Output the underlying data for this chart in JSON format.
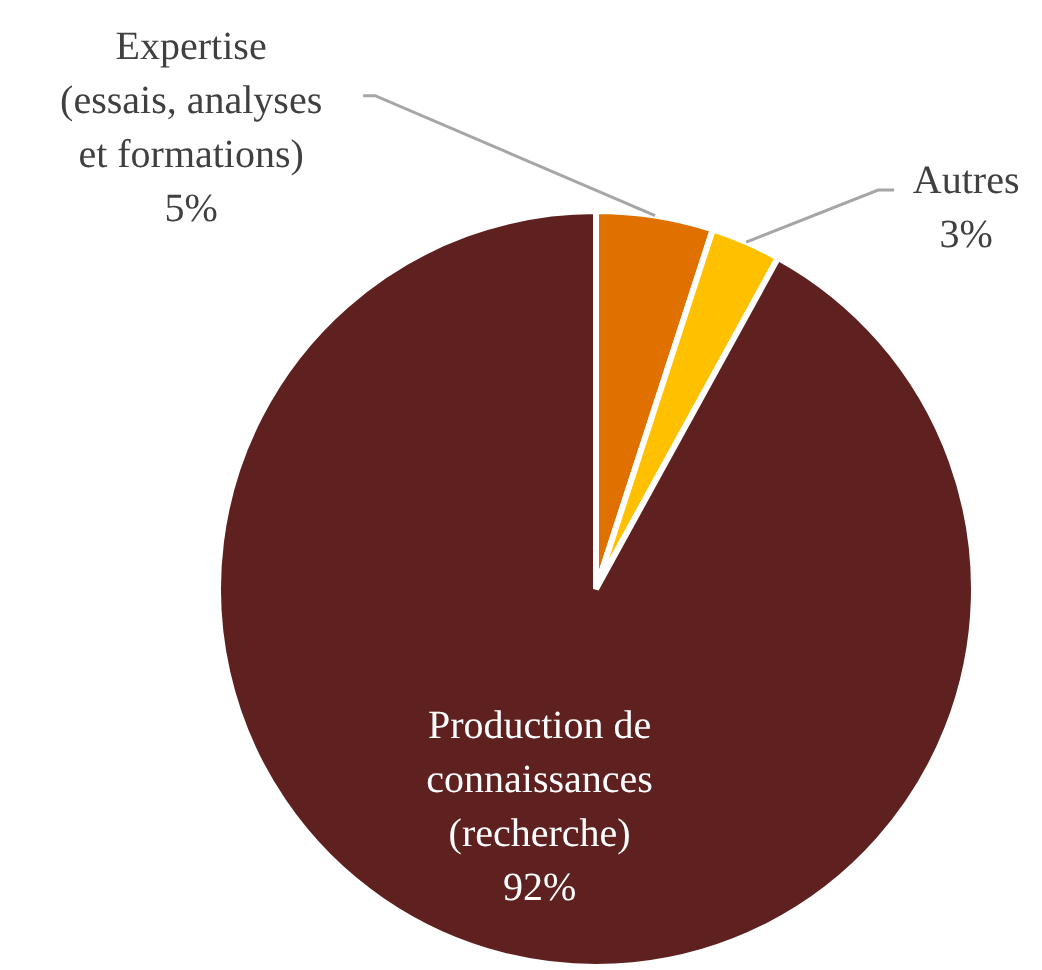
{
  "chart_data": {
    "type": "pie",
    "categories": [
      "Expertise\n(essais, analyses\net formations)",
      "Autres",
      "Production de\nconnaissances\n(recherche)"
    ],
    "values": [
      5,
      3,
      92
    ],
    "colors": [
      "#e07000",
      "#ffc000",
      "#5f2120"
    ],
    "value_labels": [
      "5%",
      "3%",
      "92%"
    ],
    "legend": false
  }
}
